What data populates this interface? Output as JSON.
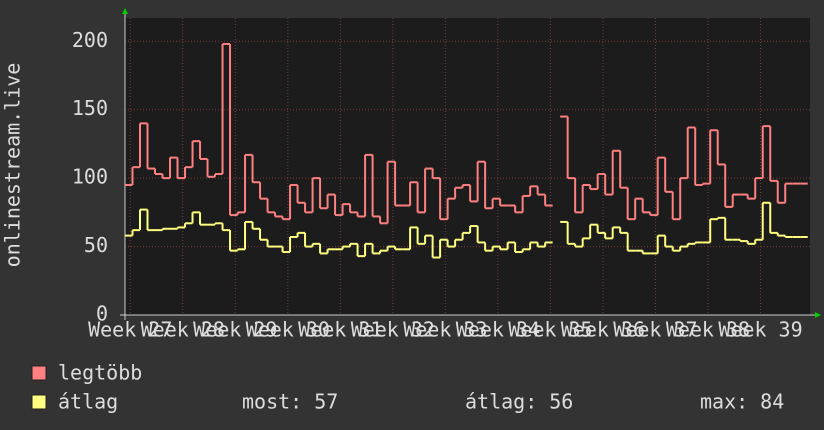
{
  "chart_data": {
    "type": "line",
    "y_label": "onlinestream.live",
    "xlim": [
      0,
      91.3
    ],
    "xticks": [
      {
        "value": 0.7,
        "label": "Week 27"
      },
      {
        "value": 7.7,
        "label": "Week 28"
      },
      {
        "value": 14.7,
        "label": "Week 29"
      },
      {
        "value": 21.7,
        "label": "Week 30"
      },
      {
        "value": 28.7,
        "label": "Week 31"
      },
      {
        "value": 35.7,
        "label": "Week 32"
      },
      {
        "value": 42.7,
        "label": "Week 33"
      },
      {
        "value": 49.7,
        "label": "Week 34"
      },
      {
        "value": 56.7,
        "label": "Week 35"
      },
      {
        "value": 63.7,
        "label": "Week 36"
      },
      {
        "value": 70.7,
        "label": "Week 37"
      },
      {
        "value": 77.7,
        "label": "Week 38"
      },
      {
        "value": 84.7,
        "label": "Week 39"
      }
    ],
    "ylim": [
      0,
      217
    ],
    "yticks": [
      0,
      50,
      100,
      150,
      200
    ],
    "grid": true,
    "series": [
      {
        "name": "legtöbb",
        "color": "#ff8080",
        "values": [
          95,
          108,
          140,
          107,
          103,
          100,
          115,
          100,
          108,
          127,
          114,
          101,
          103,
          198,
          73,
          75,
          117,
          97,
          85,
          75,
          72,
          70,
          95,
          82,
          75,
          100,
          78,
          88,
          73,
          81,
          75,
          72,
          117,
          72,
          67,
          112,
          80,
          80,
          97,
          75,
          107,
          100,
          70,
          85,
          93,
          95,
          83,
          112,
          78,
          85,
          80,
          80,
          75,
          87,
          94,
          88,
          80,
          null,
          145,
          100,
          75,
          95,
          92,
          103,
          88,
          120,
          93,
          70,
          85,
          75,
          73,
          115,
          90,
          70,
          100,
          137,
          95,
          96,
          135,
          110,
          79,
          88,
          88,
          85,
          100,
          138,
          98,
          82,
          96,
          96,
          96
        ]
      },
      {
        "name": "átlag",
        "color": "#ffff80",
        "values": [
          58,
          62,
          77,
          62,
          62,
          63,
          63,
          64,
          67,
          75,
          66,
          66,
          67,
          62,
          47,
          48,
          68,
          63,
          55,
          50,
          50,
          46,
          57,
          60,
          50,
          52,
          45,
          48,
          48,
          50,
          52,
          43,
          52,
          45,
          47,
          50,
          48,
          48,
          64,
          52,
          58,
          42,
          55,
          50,
          55,
          60,
          65,
          53,
          47,
          50,
          48,
          53,
          46,
          48,
          53,
          50,
          53,
          null,
          68,
          52,
          50,
          56,
          66,
          60,
          56,
          64,
          60,
          47,
          47,
          45,
          45,
          58,
          50,
          47,
          50,
          52,
          53,
          53,
          70,
          71,
          55,
          55,
          54,
          52,
          55,
          82,
          60,
          58,
          57,
          57,
          57
        ]
      }
    ],
    "stats": [
      {
        "label": "most:",
        "value": 57
      },
      {
        "label": "átlag:",
        "value": 56
      },
      {
        "label": "max:",
        "value": 84
      }
    ]
  }
}
